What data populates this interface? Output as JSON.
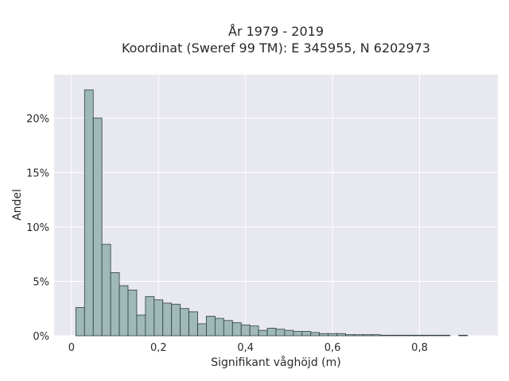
{
  "chart_data": {
    "type": "bar",
    "title_line1": "År 1979 - 2019",
    "title_line2": "Koordinat (Sweref 99 TM): E 345955, N 6202973",
    "xlabel": "Signifikant våghöjd (m)",
    "ylabel": "Andel",
    "xlim": [
      -0.04,
      0.98
    ],
    "ylim": [
      0,
      0.24
    ],
    "x_ticks": [
      0,
      0.2,
      0.4,
      0.6,
      0.8
    ],
    "x_tick_labels": [
      "0",
      "0,2",
      "0,4",
      "0,6",
      "0,8"
    ],
    "y_ticks": [
      0,
      0.05,
      0.1,
      0.15,
      0.2
    ],
    "y_tick_labels": [
      "0%",
      "5%",
      "10%",
      "15%",
      "20%"
    ],
    "grid": true,
    "bin_width": 0.02,
    "bin_start": 0.01,
    "values": [
      0.026,
      0.226,
      0.2,
      0.084,
      0.058,
      0.046,
      0.042,
      0.019,
      0.036,
      0.033,
      0.03,
      0.029,
      0.025,
      0.022,
      0.011,
      0.018,
      0.016,
      0.014,
      0.012,
      0.01,
      0.009,
      0.005,
      0.007,
      0.006,
      0.005,
      0.004,
      0.004,
      0.003,
      0.002,
      0.002,
      0.002,
      0.001,
      0.001,
      0.001,
      0.001,
      0.0005,
      0.0005,
      0.0005,
      0.0005,
      0.0005,
      0.0005,
      0.0005,
      0.0005,
      0.0,
      0.0005
    ],
    "colors": {
      "bar_fill": "#9fb8b8",
      "bar_stroke": "#2f3f3f",
      "plot_bg": "#e8e8f0",
      "grid": "#ffffff"
    }
  }
}
